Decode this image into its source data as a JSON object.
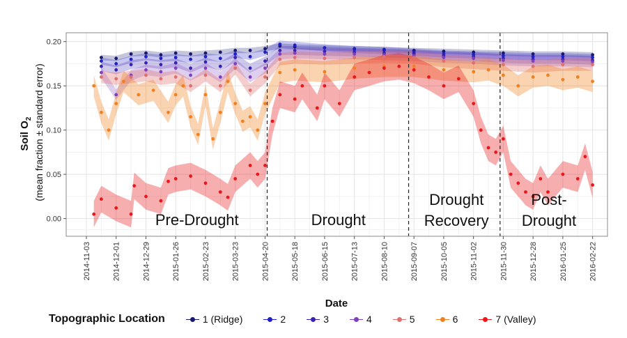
{
  "chart_data": {
    "type": "scatter",
    "xlabel": "Date",
    "ylabel_line1": "Soil O",
    "ylabel_sub": "2",
    "ylabel_line2": "(mean fraction ± standard error)",
    "xlim": [
      "2014-10-15",
      "2016-03-07"
    ],
    "ylim": [
      -0.02,
      0.21
    ],
    "x_ticks": [
      "2014-11-03",
      "2014-12-01",
      "2014-12-29",
      "2015-01-26",
      "2015-02-23",
      "2015-03-23",
      "2015-04-20",
      "2015-05-18",
      "2015-06-15",
      "2015-07-13",
      "2015-08-10",
      "2015-09-07",
      "2015-10-05",
      "2015-11-02",
      "2015-11-30",
      "2015-12-28",
      "2016-01-25",
      "2016-02-22"
    ],
    "y_ticks": [
      "0.00",
      "0.05",
      "0.10",
      "0.15",
      "0.20"
    ],
    "y_tick_values": [
      0,
      0.05,
      0.1,
      0.15,
      0.2
    ],
    "grid": true,
    "period_boundaries": [
      "2015-04-22",
      "2015-09-02",
      "2015-11-27"
    ],
    "periods": [
      {
        "label_lines": [
          "Pre-Drought"
        ],
        "center": "2015-02-15"
      },
      {
        "label_lines": [
          "Drought"
        ],
        "center": "2015-06-28"
      },
      {
        "label_lines": [
          "Drought",
          "Recovery"
        ],
        "center": "2015-10-17"
      },
      {
        "label_lines": [
          "Post-",
          "Drought"
        ],
        "center": "2016-01-12"
      }
    ],
    "legend_title": "Topographic Location",
    "legend_position": "bottom",
    "series": [
      {
        "name": "1 (Ridge)",
        "color": "#191970",
        "se": 0.003,
        "points": [
          [
            "2014-11-17",
            0.182
          ],
          [
            "2014-12-01",
            0.181
          ],
          [
            "2014-12-15",
            0.186
          ],
          [
            "2014-12-29",
            0.187
          ],
          [
            "2015-01-12",
            0.185
          ],
          [
            "2015-01-26",
            0.187
          ],
          [
            "2015-02-09",
            0.186
          ],
          [
            "2015-02-23",
            0.187
          ],
          [
            "2015-03-09",
            0.188
          ],
          [
            "2015-03-23",
            0.19
          ],
          [
            "2015-04-06",
            0.19
          ],
          [
            "2015-04-20",
            0.192
          ],
          [
            "2015-05-04",
            0.195
          ],
          [
            "2015-05-18",
            0.194
          ],
          [
            "2015-06-15",
            0.193
          ],
          [
            "2015-07-13",
            0.192
          ],
          [
            "2015-08-10",
            0.191
          ],
          [
            "2015-09-07",
            0.19
          ],
          [
            "2015-10-05",
            0.189
          ],
          [
            "2015-11-02",
            0.188
          ],
          [
            "2015-11-30",
            0.187
          ],
          [
            "2015-12-28",
            0.186
          ],
          [
            "2016-01-25",
            0.186
          ],
          [
            "2016-02-22",
            0.185
          ]
        ]
      },
      {
        "name": "2",
        "color": "#1f1fc8",
        "se": 0.004,
        "points": [
          [
            "2014-11-17",
            0.178
          ],
          [
            "2014-12-01",
            0.175
          ],
          [
            "2014-12-15",
            0.18
          ],
          [
            "2014-12-29",
            0.183
          ],
          [
            "2015-01-12",
            0.181
          ],
          [
            "2015-01-26",
            0.182
          ],
          [
            "2015-02-09",
            0.18
          ],
          [
            "2015-02-23",
            0.183
          ],
          [
            "2015-03-09",
            0.181
          ],
          [
            "2015-03-23",
            0.186
          ],
          [
            "2015-04-06",
            0.183
          ],
          [
            "2015-04-20",
            0.188
          ],
          [
            "2015-05-04",
            0.197
          ],
          [
            "2015-05-18",
            0.196
          ],
          [
            "2015-06-15",
            0.193
          ],
          [
            "2015-07-13",
            0.191
          ],
          [
            "2015-08-10",
            0.19
          ],
          [
            "2015-09-07",
            0.188
          ],
          [
            "2015-10-05",
            0.186
          ],
          [
            "2015-11-02",
            0.185
          ],
          [
            "2015-11-30",
            0.184
          ],
          [
            "2015-12-28",
            0.183
          ],
          [
            "2016-01-25",
            0.183
          ],
          [
            "2016-02-22",
            0.182
          ]
        ]
      },
      {
        "name": "3",
        "color": "#3a22b0",
        "se": 0.005,
        "points": [
          [
            "2014-11-17",
            0.172
          ],
          [
            "2014-12-01",
            0.168
          ],
          [
            "2014-12-15",
            0.174
          ],
          [
            "2014-12-29",
            0.176
          ],
          [
            "2015-01-12",
            0.174
          ],
          [
            "2015-01-26",
            0.176
          ],
          [
            "2015-02-09",
            0.17
          ],
          [
            "2015-02-23",
            0.177
          ],
          [
            "2015-03-09",
            0.172
          ],
          [
            "2015-03-23",
            0.182
          ],
          [
            "2015-04-06",
            0.17
          ],
          [
            "2015-04-20",
            0.178
          ],
          [
            "2015-05-04",
            0.19
          ],
          [
            "2015-05-18",
            0.19
          ],
          [
            "2015-06-15",
            0.189
          ],
          [
            "2015-07-13",
            0.188
          ],
          [
            "2015-08-10",
            0.187
          ],
          [
            "2015-09-07",
            0.186
          ],
          [
            "2015-10-05",
            0.184
          ],
          [
            "2015-11-02",
            0.183
          ],
          [
            "2015-11-30",
            0.181
          ],
          [
            "2015-12-28",
            0.18
          ],
          [
            "2016-01-25",
            0.18
          ],
          [
            "2016-02-22",
            0.179
          ]
        ]
      },
      {
        "name": "4",
        "color": "#7f3fbf",
        "se": 0.006,
        "points": [
          [
            "2014-11-17",
            0.165
          ],
          [
            "2014-12-01",
            0.14
          ],
          [
            "2014-12-15",
            0.162
          ],
          [
            "2014-12-29",
            0.168
          ],
          [
            "2015-01-12",
            0.166
          ],
          [
            "2015-01-26",
            0.17
          ],
          [
            "2015-02-09",
            0.162
          ],
          [
            "2015-02-23",
            0.17
          ],
          [
            "2015-03-09",
            0.16
          ],
          [
            "2015-03-23",
            0.175
          ],
          [
            "2015-04-06",
            0.16
          ],
          [
            "2015-04-20",
            0.17
          ],
          [
            "2015-05-04",
            0.186
          ],
          [
            "2015-05-18",
            0.187
          ],
          [
            "2015-06-15",
            0.186
          ],
          [
            "2015-07-13",
            0.186
          ],
          [
            "2015-08-10",
            0.185
          ],
          [
            "2015-09-07",
            0.184
          ],
          [
            "2015-10-05",
            0.182
          ],
          [
            "2015-11-02",
            0.181
          ],
          [
            "2015-11-30",
            0.179
          ],
          [
            "2015-12-28",
            0.178
          ],
          [
            "2016-01-25",
            0.178
          ],
          [
            "2016-02-22",
            0.177
          ]
        ]
      },
      {
        "name": "5",
        "color": "#e07070",
        "se": 0.007,
        "points": [
          [
            "2014-11-17",
            0.16
          ],
          [
            "2014-12-01",
            0.158
          ],
          [
            "2014-12-15",
            0.16
          ],
          [
            "2014-12-29",
            0.162
          ],
          [
            "2015-01-12",
            0.158
          ],
          [
            "2015-01-26",
            0.16
          ],
          [
            "2015-02-09",
            0.15
          ],
          [
            "2015-02-23",
            0.162
          ],
          [
            "2015-03-09",
            0.15
          ],
          [
            "2015-03-23",
            0.17
          ],
          [
            "2015-04-06",
            0.145
          ],
          [
            "2015-04-20",
            0.16
          ],
          [
            "2015-05-04",
            0.18
          ],
          [
            "2015-05-18",
            0.182
          ],
          [
            "2015-06-15",
            0.181
          ],
          [
            "2015-07-13",
            0.182
          ],
          [
            "2015-08-10",
            0.183
          ],
          [
            "2015-09-07",
            0.182
          ],
          [
            "2015-10-05",
            0.178
          ],
          [
            "2015-11-02",
            0.176
          ],
          [
            "2015-11-30",
            0.174
          ],
          [
            "2015-12-28",
            0.172
          ],
          [
            "2016-01-25",
            0.174
          ],
          [
            "2016-02-22",
            0.174
          ]
        ]
      },
      {
        "name": "6",
        "color": "#f08020",
        "se": 0.012,
        "points": [
          [
            "2014-11-10",
            0.15
          ],
          [
            "2014-11-17",
            0.12
          ],
          [
            "2014-11-24",
            0.1
          ],
          [
            "2014-12-01",
            0.13
          ],
          [
            "2014-12-08",
            0.155
          ],
          [
            "2014-12-22",
            0.14
          ],
          [
            "2015-01-05",
            0.145
          ],
          [
            "2015-01-19",
            0.12
          ],
          [
            "2015-01-26",
            0.14
          ],
          [
            "2015-02-02",
            0.15
          ],
          [
            "2015-02-09",
            0.115
          ],
          [
            "2015-02-16",
            0.095
          ],
          [
            "2015-02-23",
            0.14
          ],
          [
            "2015-03-02",
            0.09
          ],
          [
            "2015-03-09",
            0.12
          ],
          [
            "2015-03-16",
            0.155
          ],
          [
            "2015-03-23",
            0.13
          ],
          [
            "2015-03-30",
            0.11
          ],
          [
            "2015-04-06",
            0.115
          ],
          [
            "2015-04-13",
            0.1
          ],
          [
            "2015-04-20",
            0.13
          ],
          [
            "2015-05-04",
            0.165
          ],
          [
            "2015-05-18",
            0.168
          ],
          [
            "2015-06-15",
            0.166
          ],
          [
            "2015-07-13",
            0.17
          ],
          [
            "2015-08-10",
            0.172
          ],
          [
            "2015-09-07",
            0.172
          ],
          [
            "2015-10-05",
            0.168
          ],
          [
            "2015-11-02",
            0.166
          ],
          [
            "2015-11-16",
            0.168
          ],
          [
            "2015-11-30",
            0.162
          ],
          [
            "2015-12-14",
            0.15
          ],
          [
            "2015-12-28",
            0.16
          ],
          [
            "2016-01-11",
            0.162
          ],
          [
            "2016-01-25",
            0.157
          ],
          [
            "2016-02-08",
            0.16
          ],
          [
            "2016-02-22",
            0.155
          ]
        ]
      },
      {
        "name": "7 (Valley)",
        "color": "#e8171b",
        "se": 0.015,
        "points": [
          [
            "2014-11-10",
            0.005
          ],
          [
            "2014-11-17",
            0.022
          ],
          [
            "2014-12-01",
            0.012
          ],
          [
            "2014-12-15",
            0.005
          ],
          [
            "2014-12-18",
            0.037
          ],
          [
            "2014-12-29",
            0.025
          ],
          [
            "2015-01-12",
            0.02
          ],
          [
            "2015-01-19",
            0.042
          ],
          [
            "2015-01-26",
            0.045
          ],
          [
            "2015-02-09",
            0.048
          ],
          [
            "2015-02-23",
            0.04
          ],
          [
            "2015-03-09",
            0.03
          ],
          [
            "2015-03-16",
            0.024
          ],
          [
            "2015-03-23",
            0.045
          ],
          [
            "2015-04-06",
            0.06
          ],
          [
            "2015-04-13",
            0.05
          ],
          [
            "2015-04-20",
            0.06
          ],
          [
            "2015-04-27",
            0.11
          ],
          [
            "2015-05-04",
            0.14
          ],
          [
            "2015-05-18",
            0.135
          ],
          [
            "2015-05-25",
            0.15
          ],
          [
            "2015-06-08",
            0.125
          ],
          [
            "2015-06-15",
            0.15
          ],
          [
            "2015-06-29",
            0.13
          ],
          [
            "2015-07-13",
            0.16
          ],
          [
            "2015-07-27",
            0.165
          ],
          [
            "2015-08-10",
            0.17
          ],
          [
            "2015-08-24",
            0.172
          ],
          [
            "2015-09-07",
            0.168
          ],
          [
            "2015-09-21",
            0.16
          ],
          [
            "2015-10-05",
            0.15
          ],
          [
            "2015-10-19",
            0.158
          ],
          [
            "2015-11-02",
            0.13
          ],
          [
            "2015-11-09",
            0.1
          ],
          [
            "2015-11-16",
            0.08
          ],
          [
            "2015-11-23",
            0.075
          ],
          [
            "2015-11-30",
            0.09
          ],
          [
            "2015-12-07",
            0.05
          ],
          [
            "2015-12-14",
            0.04
          ],
          [
            "2015-12-21",
            0.03
          ],
          [
            "2015-12-28",
            0.025
          ],
          [
            "2016-01-04",
            0.045
          ],
          [
            "2016-01-11",
            0.03
          ],
          [
            "2016-01-25",
            0.05
          ],
          [
            "2016-02-08",
            0.045
          ],
          [
            "2016-02-15",
            0.07
          ],
          [
            "2016-02-22",
            0.038
          ]
        ]
      }
    ]
  }
}
